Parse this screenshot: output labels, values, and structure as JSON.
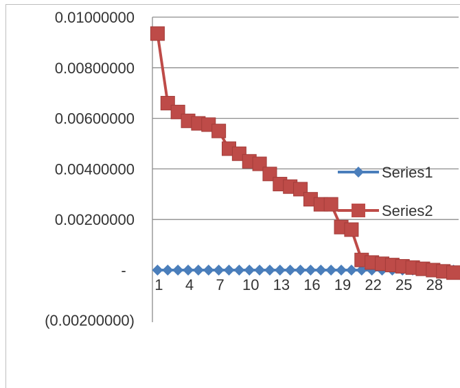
{
  "chart_data": {
    "type": "line",
    "title": "",
    "xlabel": "",
    "ylabel": "",
    "x": [
      1,
      2,
      3,
      4,
      5,
      6,
      7,
      8,
      9,
      10,
      11,
      12,
      13,
      14,
      15,
      16,
      17,
      18,
      19,
      20,
      21,
      22,
      23,
      24,
      25,
      26,
      27,
      28,
      29,
      30
    ],
    "x_tick_labels": [
      "1",
      "4",
      "7",
      "10",
      "13",
      "16",
      "19",
      "22",
      "25",
      "28"
    ],
    "y_tick_labels": [
      "0.01000000",
      "0.00800000",
      "0.00600000",
      "0.00400000",
      "0.00200000",
      "-",
      "(0.00200000)"
    ],
    "ylim": [
      -0.002,
      0.01
    ],
    "grid": true,
    "legend_position": "right",
    "series": [
      {
        "name": "Series1",
        "color": "#4a7ebb",
        "marker": "diamond",
        "values": [
          0,
          0,
          0,
          0,
          0,
          0,
          0,
          0,
          0,
          0,
          0,
          0,
          0,
          0,
          0,
          0,
          0,
          0,
          0,
          0,
          0,
          0,
          0,
          0,
          0,
          0,
          0,
          0,
          0,
          0
        ]
      },
      {
        "name": "Series2",
        "color": "#be4b48",
        "marker": "square",
        "values": [
          0.00935,
          0.0066,
          0.00625,
          0.0059,
          0.0058,
          0.00575,
          0.0055,
          0.0048,
          0.0046,
          0.0043,
          0.0042,
          0.0038,
          0.0034,
          0.0033,
          0.0032,
          0.0028,
          0.0026,
          0.0026,
          0.0017,
          0.0016,
          0.0004,
          0.0003,
          0.00025,
          0.0002,
          0.00015,
          0.0001,
          5e-05,
          0.0,
          -5e-05,
          -0.0001
        ]
      }
    ]
  }
}
